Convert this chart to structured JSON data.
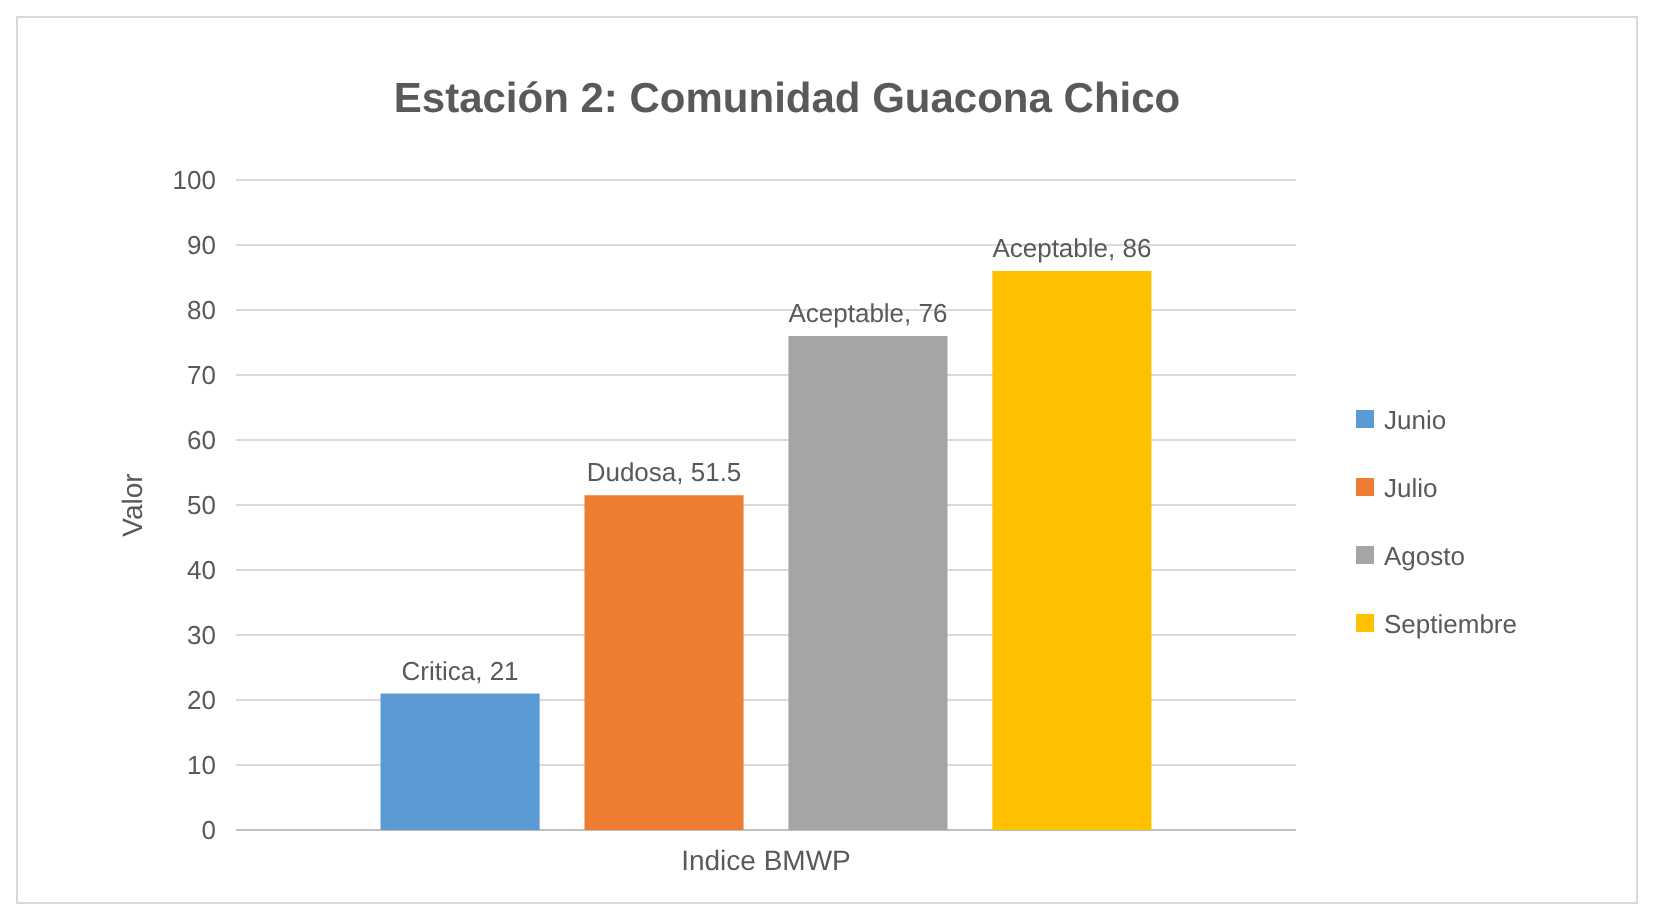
{
  "chart_data": {
    "type": "bar",
    "title": "Estación 2: Comunidad Guacona Chico",
    "ylabel": "Valor",
    "categories": [
      "Indice BMWP"
    ],
    "series": [
      {
        "name": "Junio",
        "color": "#5b9bd5",
        "values": [
          21
        ],
        "value_labels": [
          "Critica, 21"
        ]
      },
      {
        "name": "Julio",
        "color": "#ed7d31",
        "values": [
          51.5
        ],
        "value_labels": [
          "Dudosa, 51.5"
        ]
      },
      {
        "name": "Agosto",
        "color": "#a5a5a5",
        "values": [
          76
        ],
        "value_labels": [
          "Aceptable, 76"
        ]
      },
      {
        "name": "Septiembre",
        "color": "#ffc000",
        "values": [
          86
        ],
        "value_labels": [
          "Aceptable, 86"
        ]
      }
    ],
    "ylim": [
      0,
      100
    ],
    "yticks": [
      0,
      10,
      20,
      30,
      40,
      50,
      60,
      70,
      80,
      90,
      100
    ],
    "grid": "y",
    "legend": "right"
  }
}
